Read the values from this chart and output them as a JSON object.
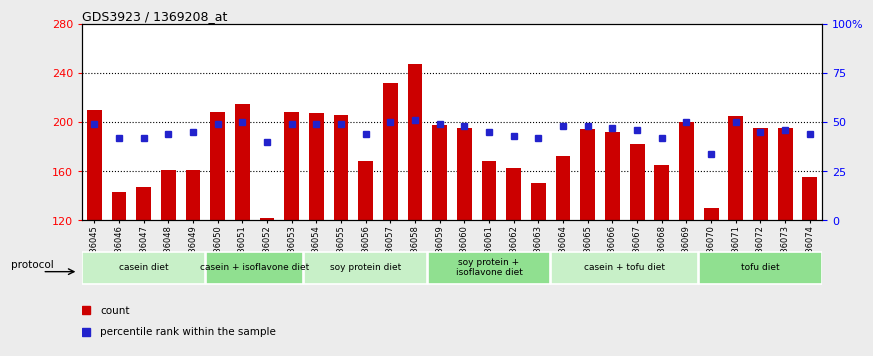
{
  "title": "GDS3923 / 1369208_at",
  "samples": [
    "GSM586045",
    "GSM586046",
    "GSM586047",
    "GSM586048",
    "GSM586049",
    "GSM586050",
    "GSM586051",
    "GSM586052",
    "GSM586053",
    "GSM586054",
    "GSM586055",
    "GSM586056",
    "GSM586057",
    "GSM586058",
    "GSM586059",
    "GSM586060",
    "GSM586061",
    "GSM586062",
    "GSM586063",
    "GSM586064",
    "GSM586065",
    "GSM586066",
    "GSM586067",
    "GSM586068",
    "GSM586069",
    "GSM586070",
    "GSM586071",
    "GSM586072",
    "GSM586073",
    "GSM586074"
  ],
  "counts": [
    210,
    143,
    147,
    161,
    161,
    208,
    215,
    122,
    208,
    207,
    206,
    168,
    232,
    247,
    198,
    195,
    168,
    163,
    150,
    172,
    194,
    192,
    182,
    165,
    200,
    130,
    205,
    195,
    195,
    155
  ],
  "percentile_ranks_pct": [
    49,
    42,
    42,
    44,
    45,
    49,
    50,
    40,
    49,
    49,
    49,
    44,
    50,
    51,
    49,
    48,
    45,
    43,
    42,
    48,
    48,
    47,
    46,
    42,
    50,
    34,
    50,
    45,
    46,
    44
  ],
  "groups": [
    {
      "label": "casein diet",
      "start": 0,
      "end": 5,
      "color": "#c8f0c8"
    },
    {
      "label": "casein + isoflavone diet",
      "start": 5,
      "end": 9,
      "color": "#90e090"
    },
    {
      "label": "soy protein diet",
      "start": 9,
      "end": 14,
      "color": "#c8f0c8"
    },
    {
      "label": "soy protein +\nisoflavone diet",
      "start": 14,
      "end": 19,
      "color": "#90e090"
    },
    {
      "label": "casein + tofu diet",
      "start": 19,
      "end": 25,
      "color": "#c8f0c8"
    },
    {
      "label": "tofu diet",
      "start": 25,
      "end": 30,
      "color": "#90e090"
    }
  ],
  "ymin": 120,
  "ymax": 280,
  "yticks_left": [
    120,
    160,
    200,
    240,
    280
  ],
  "yticks_right": [
    0,
    25,
    50,
    75,
    100
  ],
  "yticklabels_right": [
    "0",
    "25",
    "50",
    "75",
    "100%"
  ],
  "bar_color": "#cc0000",
  "dot_color": "#2222cc",
  "bg_color": "#ececec",
  "plot_bg": "#ffffff",
  "grid_color": "#000000",
  "bar_width": 0.6
}
